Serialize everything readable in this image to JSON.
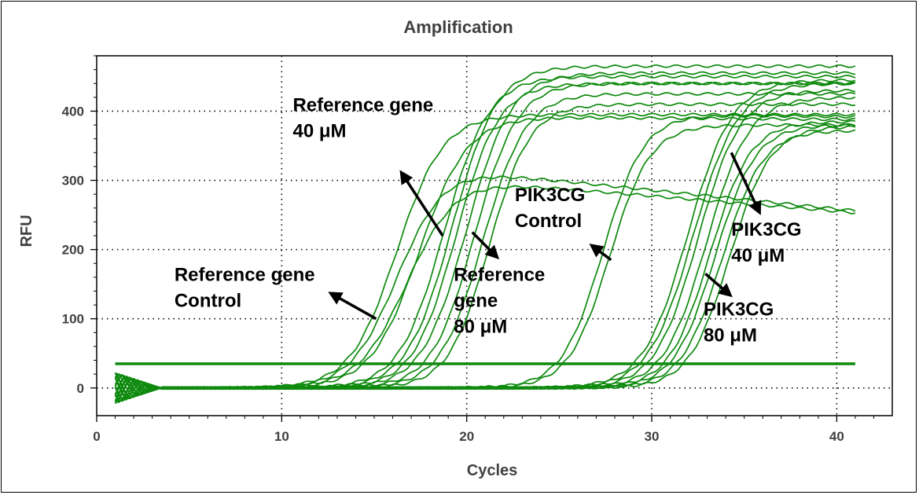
{
  "chart_data": {
    "type": "line",
    "title": "Amplification",
    "xlabel": "Cycles",
    "ylabel": "RFU",
    "xlim": [
      0,
      43
    ],
    "ylim": [
      -40,
      480
    ],
    "x_ticks": [
      0,
      10,
      20,
      30,
      40
    ],
    "y_ticks": [
      0,
      100,
      200,
      300,
      400
    ],
    "grid": true,
    "threshold": 35,
    "color": "#0f8a0f",
    "series": [
      {
        "ct": 13.3,
        "plateau": 395,
        "slope": 1.25,
        "decline": 0,
        "min": 0
      },
      {
        "ct": 13.6,
        "plateau": 315,
        "slope": 1.25,
        "decline": 2.7,
        "min": 0
      },
      {
        "ct": 14.1,
        "plateau": 300,
        "slope": 1.3,
        "decline": 2.2,
        "min": 0
      },
      {
        "ct": 14.4,
        "plateau": 392,
        "slope": 1.3,
        "decline": 0.2,
        "min": 0
      },
      {
        "ct": 15.8,
        "plateau": 450,
        "slope": 1.2,
        "decline": 0,
        "min": 0
      },
      {
        "ct": 16.2,
        "plateau": 465,
        "slope": 1.2,
        "decline": 0,
        "min": 0
      },
      {
        "ct": 16.6,
        "plateau": 440,
        "slope": 1.15,
        "decline": 0,
        "min": 0
      },
      {
        "ct": 17.0,
        "plateau": 455,
        "slope": 1.2,
        "decline": 0,
        "min": 0
      },
      {
        "ct": 17.6,
        "plateau": 440,
        "slope": 1.15,
        "decline": 0,
        "min": 0
      },
      {
        "ct": 18.1,
        "plateau": 425,
        "slope": 1.15,
        "decline": 0,
        "min": 0
      },
      {
        "ct": 18.6,
        "plateau": 410,
        "slope": 1.1,
        "decline": 0,
        "min": 0
      },
      {
        "ct": 24.8,
        "plateau": 395,
        "slope": 1.1,
        "decline": 0.3,
        "min": 0
      },
      {
        "ct": 25.2,
        "plateau": 380,
        "slope": 1.1,
        "decline": 0,
        "min": 0
      },
      {
        "ct": 29.0,
        "plateau": 445,
        "slope": 1.2,
        "decline": 0,
        "min": 0
      },
      {
        "ct": 29.3,
        "plateau": 440,
        "slope": 1.2,
        "decline": 0,
        "min": 0
      },
      {
        "ct": 29.7,
        "plateau": 430,
        "slope": 1.15,
        "decline": 0,
        "min": 0
      },
      {
        "ct": 30.2,
        "plateau": 420,
        "slope": 1.15,
        "decline": 0,
        "min": 0
      },
      {
        "ct": 30.6,
        "plateau": 385,
        "slope": 1.1,
        "decline": 0,
        "min": 0
      },
      {
        "ct": 30.9,
        "plateau": 380,
        "slope": 1.1,
        "decline": 0,
        "min": 0
      },
      {
        "ct": 31.3,
        "plateau": 372,
        "slope": 1.1,
        "decline": 0,
        "min": 0
      },
      {
        "ct": 31.7,
        "plateau": 378,
        "slope": 1.1,
        "decline": 0,
        "min": 0
      }
    ],
    "annotations": [
      {
        "lines": [
          "Reference gene",
          "40 μM"
        ],
        "x": 10.6,
        "y": 400,
        "arrow_from": [
          18.7,
          220
        ],
        "arrow_to": [
          16.5,
          310
        ]
      },
      {
        "lines": [
          "Reference gene",
          "Control"
        ],
        "x": 4.2,
        "y": 155,
        "arrow_from": [
          15.1,
          100
        ],
        "arrow_to": [
          12.7,
          136
        ]
      },
      {
        "lines": [
          "Reference",
          "gene",
          "80 μM"
        ],
        "x": 19.3,
        "y": 155,
        "arrow_from": [
          20.3,
          225
        ],
        "arrow_to": [
          21.6,
          190
        ]
      },
      {
        "lines": [
          "PIK3CG",
          "Control"
        ],
        "x": 22.6,
        "y": 270,
        "arrow_from": [
          27.8,
          185
        ],
        "arrow_to": [
          26.8,
          205
        ]
      },
      {
        "lines": [
          "PIK3CG",
          "40 μM"
        ],
        "x": 34.3,
        "y": 220,
        "arrow_from": [
          34.3,
          340
        ],
        "arrow_to": [
          35.8,
          255
        ]
      },
      {
        "lines": [
          "PIK3CG",
          "80 μM"
        ],
        "x": 32.8,
        "y": 105,
        "arrow_from": [
          32.9,
          165
        ],
        "arrow_to": [
          34.2,
          135
        ]
      }
    ]
  }
}
